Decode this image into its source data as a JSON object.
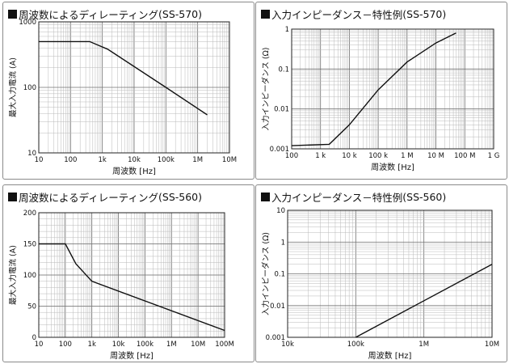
{
  "chart_data": [
    {
      "type": "line",
      "title": "周波数によるディレーティング",
      "model": "(SS-570)",
      "xlabel": "周波数",
      "xunit": "Hz",
      "ylabel": "最大入力電流",
      "yunit": "A",
      "xscale": "log",
      "yscale": "log",
      "xlim": [
        10,
        10000000
      ],
      "ylim": [
        10,
        1000
      ],
      "grid": true,
      "xticks": [
        10,
        100,
        1000,
        10000,
        100000,
        1000000,
        10000000
      ],
      "xtick_labels": [
        "10",
        "100",
        "1k",
        "10k",
        "100k",
        "1M",
        "10M"
      ],
      "yticks": [
        10,
        100,
        1000
      ],
      "ytick_labels": [
        "10",
        "100",
        "1000"
      ],
      "series": [
        {
          "x": [
            10,
            400,
            1500,
            100000,
            2000000
          ],
          "y": [
            500,
            500,
            380,
            100,
            38
          ]
        }
      ]
    },
    {
      "type": "line",
      "title": "入力インピーダンス－特性例",
      "model": "(SS-570)",
      "xlabel": "周波数",
      "xunit": "Hz",
      "ylabel": "入力インピーダンス",
      "yunit": "Ω",
      "xscale": "log",
      "yscale": "log",
      "xlim": [
        100,
        1000000000
      ],
      "ylim": [
        0.001,
        1
      ],
      "grid": true,
      "xticks": [
        100,
        1000,
        10000,
        100000,
        1000000,
        10000000,
        100000000,
        1000000000
      ],
      "xtick_labels": [
        "100",
        "1 k",
        "10 k",
        "100 k",
        "1 M",
        "10 M",
        "100 M",
        "1 G"
      ],
      "yticks": [
        0.001,
        0.01,
        0.1,
        1
      ],
      "ytick_labels": [
        "0.001",
        "0.01",
        "0.1",
        "1"
      ],
      "series": [
        {
          "x": [
            100,
            2000,
            10000,
            100000,
            1000000,
            10000000,
            50000000
          ],
          "y": [
            0.0012,
            0.0013,
            0.004,
            0.03,
            0.15,
            0.45,
            0.8
          ]
        }
      ]
    },
    {
      "type": "line",
      "title": "周波数によるディレーティング",
      "model": "(SS-560)",
      "xlabel": "周波数",
      "xunit": "Hz",
      "ylabel": "最大入力電流",
      "yunit": "A",
      "xscale": "log",
      "yscale": "linear",
      "xlim": [
        10,
        100000000
      ],
      "ylim": [
        0,
        200
      ],
      "grid": true,
      "xticks": [
        10,
        100,
        1000,
        10000,
        100000,
        1000000,
        10000000,
        100000000
      ],
      "xtick_labels": [
        "10",
        "100",
        "1k",
        "10k",
        "100k",
        "1M",
        "10M",
        "100M"
      ],
      "yticks": [
        0,
        50,
        100,
        150,
        200
      ],
      "ytick_labels": [
        "0",
        "50",
        "100",
        "150",
        "200"
      ],
      "series": [
        {
          "x": [
            10,
            100,
            250,
            1000,
            100000000
          ],
          "y": [
            150,
            150,
            118,
            90,
            11
          ]
        }
      ]
    },
    {
      "type": "line",
      "title": "入力インピーダンス－特性例",
      "model": "(SS-560)",
      "xlabel": "周波数",
      "xunit": "Hz",
      "ylabel": "入力インピーダンス",
      "yunit": "Ω",
      "xscale": "log",
      "yscale": "log",
      "xlim": [
        10000,
        10000000
      ],
      "ylim": [
        0.001,
        10
      ],
      "grid": true,
      "xticks": [
        10000,
        100000,
        1000000,
        10000000
      ],
      "xtick_labels": [
        "10k",
        "100k",
        "1M",
        "10M"
      ],
      "yticks": [
        0.001,
        0.01,
        0.1,
        1,
        10
      ],
      "ytick_labels": [
        "0.001",
        "0.01",
        "0.1",
        "1",
        "10"
      ],
      "series": [
        {
          "x": [
            100000,
            10000000
          ],
          "y": [
            0.001,
            0.2
          ]
        }
      ]
    }
  ]
}
